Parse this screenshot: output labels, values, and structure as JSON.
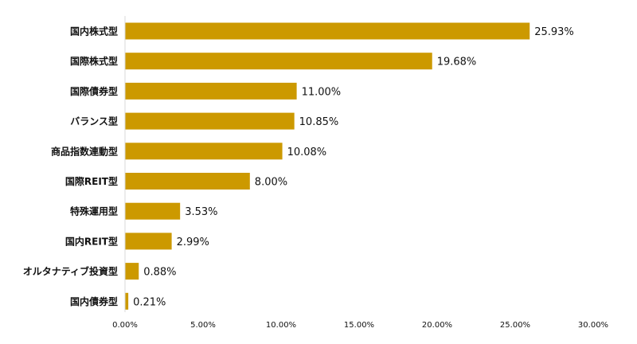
{
  "chart_data": {
    "type": "bar",
    "orientation": "horizontal",
    "title": "",
    "xlabel": "",
    "ylabel": "",
    "categories": [
      "国内株式型",
      "国際株式型",
      "国際債券型",
      "バランス型",
      "商品指数連動型",
      "国際REIT型",
      "特殊運用型",
      "国内REIT型",
      "オルタナティブ投資型",
      "国内債券型"
    ],
    "values": [
      25.93,
      19.68,
      11.0,
      10.85,
      10.08,
      8.0,
      3.53,
      2.99,
      0.88,
      0.21
    ],
    "value_labels": [
      "25.93%",
      "19.68%",
      "11.00%",
      "10.85%",
      "10.08%",
      "8.00%",
      "3.53%",
      "2.99%",
      "0.88%",
      "0.21%"
    ],
    "xlim": [
      0,
      30
    ],
    "x_ticks": [
      0,
      5,
      10,
      15,
      20,
      25,
      30
    ],
    "x_tick_labels": [
      "0.00%",
      "5.00%",
      "10.00%",
      "15.00%",
      "20.00%",
      "25.00%",
      "30.00%"
    ],
    "grid": false,
    "legend": "none",
    "bar_color": "#CC9900",
    "axis_color": "#D9D9D9"
  }
}
